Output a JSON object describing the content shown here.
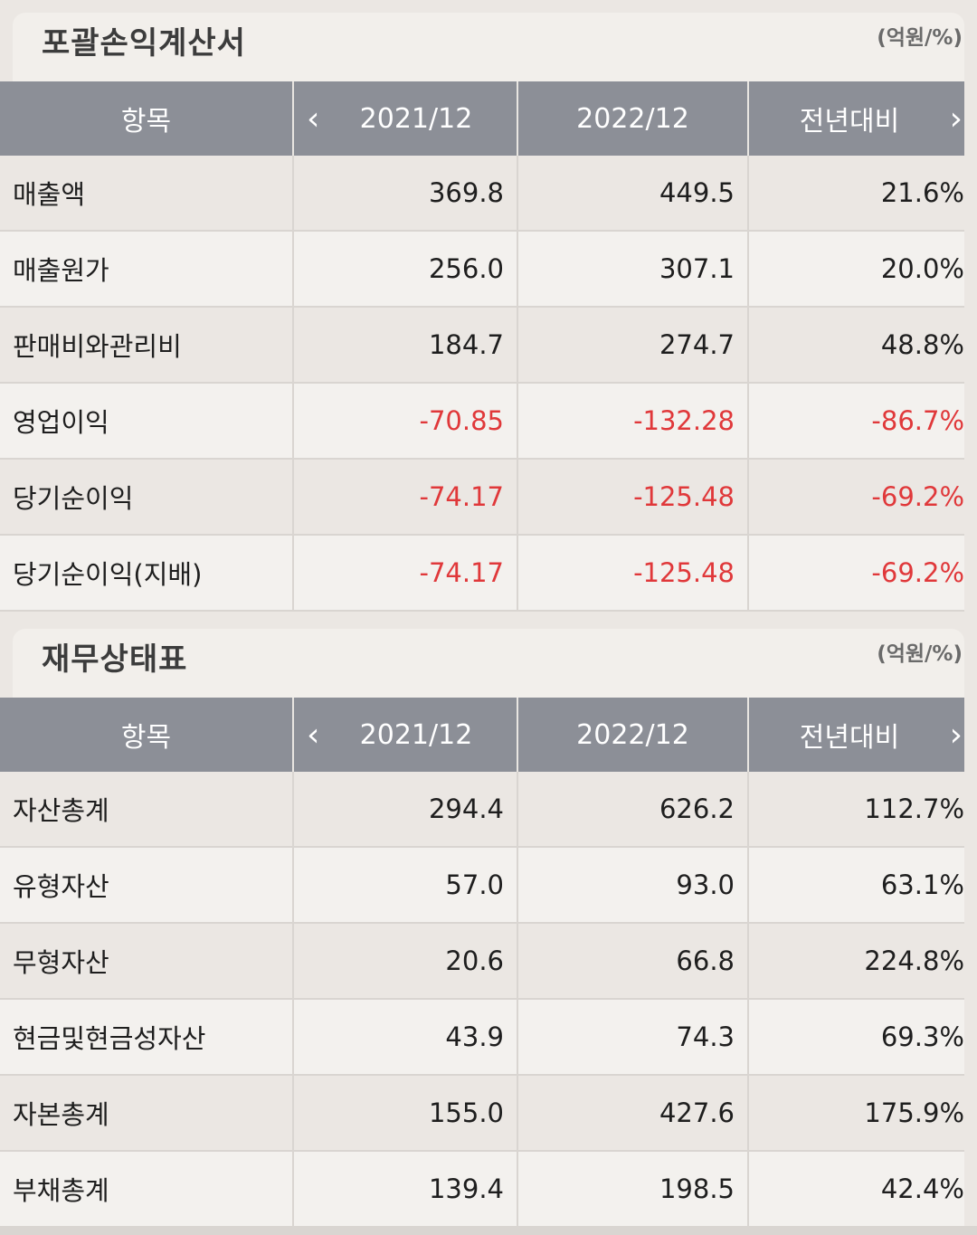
{
  "income": {
    "title": "포괄손익계산서",
    "unit": "(억원/%)",
    "headers": {
      "item": "항목",
      "prev_arrow": "‹",
      "col_a": "2021/12",
      "col_b": "2022/12",
      "col_c": "전년대비",
      "next_arrow": "›"
    },
    "rows": [
      {
        "label": "매출액",
        "a": "369.8",
        "b": "449.5",
        "c": "21.6%",
        "negative": false
      },
      {
        "label": "매출원가",
        "a": "256.0",
        "b": "307.1",
        "c": "20.0%",
        "negative": false
      },
      {
        "label": "판매비와관리비",
        "a": "184.7",
        "b": "274.7",
        "c": "48.8%",
        "negative": false
      },
      {
        "label": "영업이익",
        "a": "-70.85",
        "b": "-132.28",
        "c": "-86.7%",
        "negative": true
      },
      {
        "label": "당기순이익",
        "a": "-74.17",
        "b": "-125.48",
        "c": "-69.2%",
        "negative": true
      },
      {
        "label": "당기순이익(지배)",
        "a": "-74.17",
        "b": "-125.48",
        "c": "-69.2%",
        "negative": true
      }
    ]
  },
  "balance": {
    "title": "재무상태표",
    "unit": "(억원/%)",
    "headers": {
      "item": "항목",
      "prev_arrow": "‹",
      "col_a": "2021/12",
      "col_b": "2022/12",
      "col_c": "전년대비",
      "next_arrow": "›"
    },
    "rows": [
      {
        "label": "자산총계",
        "a": "294.4",
        "b": "626.2",
        "c": "112.7%",
        "negative": false
      },
      {
        "label": "유형자산",
        "a": "57.0",
        "b": "93.0",
        "c": "63.1%",
        "negative": false
      },
      {
        "label": "무형자산",
        "a": "20.6",
        "b": "66.8",
        "c": "224.8%",
        "negative": false
      },
      {
        "label": "현금및현금성자산",
        "a": "43.9",
        "b": "74.3",
        "c": "69.3%",
        "negative": false
      },
      {
        "label": "자본총계",
        "a": "155.0",
        "b": "427.6",
        "c": "175.9%",
        "negative": false
      },
      {
        "label": "부채총계",
        "a": "139.4",
        "b": "198.5",
        "c": "42.4%",
        "negative": false
      }
    ]
  },
  "colors": {
    "header_bg": "#8c8f97",
    "negative": "#e0383a"
  }
}
